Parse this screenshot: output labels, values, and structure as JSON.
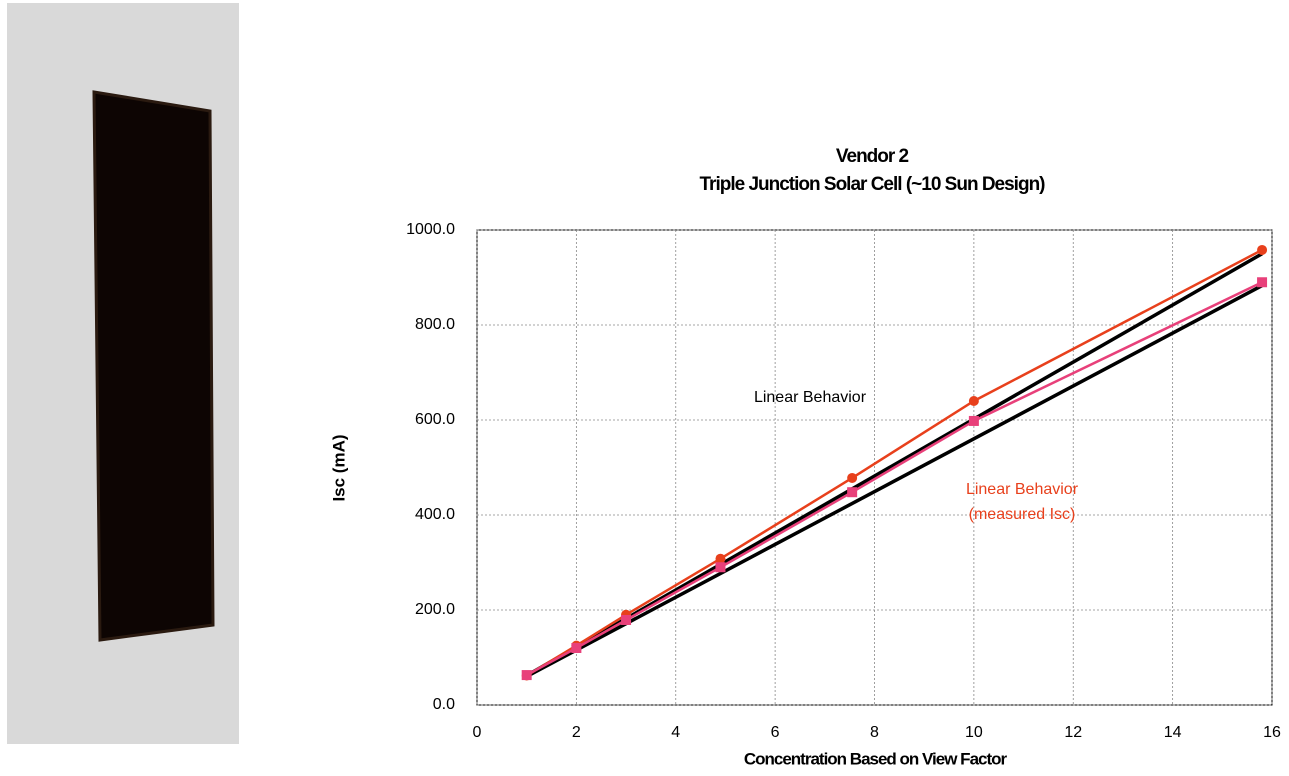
{
  "chart_data": {
    "type": "scatter",
    "title": [
      "Vendor 2",
      "Triple Junction Solar Cell (~10 Sun Design)"
    ],
    "xlabel": "Concentration Based on View Factor",
    "ylabel": "Isc (mA)",
    "xlim": [
      0,
      16
    ],
    "xticks": [
      0,
      2,
      4,
      6,
      8,
      10,
      12,
      14,
      16
    ],
    "ylim": [
      0,
      1000
    ],
    "yticks": [
      {
        "value": 0,
        "label": "0.0"
      },
      {
        "value": 200,
        "label": "200.0"
      },
      {
        "value": 400,
        "label": "400.0"
      },
      {
        "value": 600,
        "label": "600.0"
      },
      {
        "value": 800,
        "label": "800.0"
      },
      {
        "value": 1000,
        "label": "1000.0"
      }
    ],
    "grid": true,
    "series": [
      {
        "color": "#000000",
        "marker": "none",
        "x": [
          1,
          15.8
        ],
        "values": [
          62,
          950
        ]
      },
      {
        "color": "#000000",
        "marker": "none",
        "x": [
          1,
          15.8
        ],
        "values": [
          60,
          883
        ]
      },
      {
        "color": "#e8401c",
        "marker": "circle",
        "x": [
          1,
          2,
          3,
          4.9,
          7.55,
          10,
          15.8
        ],
        "values": [
          62,
          125,
          190,
          308,
          478,
          640,
          958
        ]
      },
      {
        "color": "#e8407a",
        "marker": "square",
        "x": [
          1,
          2,
          3,
          4.9,
          7.55,
          10,
          15.8
        ],
        "values": [
          63,
          120,
          179,
          290,
          448,
          598,
          890
        ]
      }
    ],
    "annotations": [
      {
        "text": [
          "Linear Behavior"
        ],
        "color": "#000000"
      },
      {
        "text": [
          "Linear Behavior",
          "(measured Isc)"
        ],
        "color": "#e8401c"
      }
    ]
  }
}
